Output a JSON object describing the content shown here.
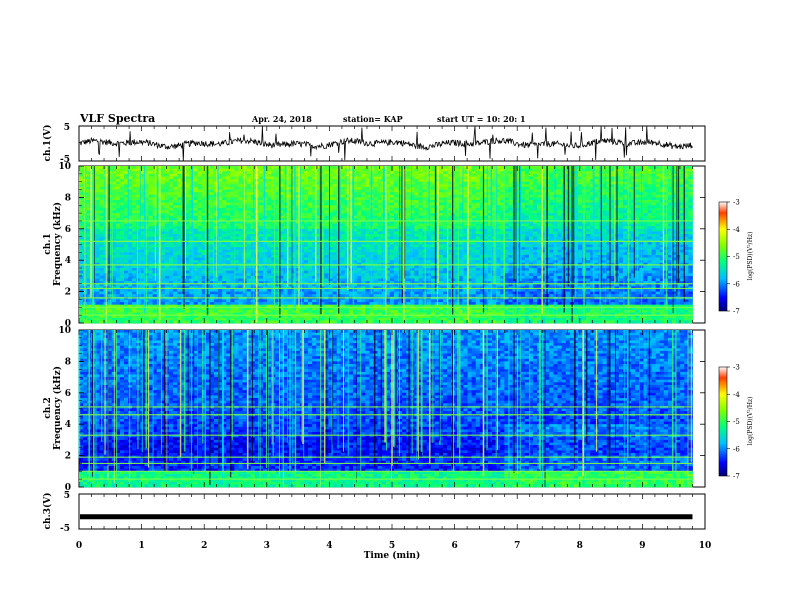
{
  "header": {
    "title": "VLF Spectra",
    "date": "Apr. 24, 2018",
    "station": "station= KAP",
    "start_ut": "start  UT =  10: 20: 1"
  },
  "chart_data": [
    {
      "type": "line",
      "panel": "ch1-waveform",
      "ylabel": "ch.1(V)",
      "ylim": [
        -5,
        5
      ],
      "yticks": [
        "5",
        "-5"
      ],
      "xlim": [
        0,
        10
      ],
      "description_values": "noisy waveform fluctuating roughly between -2 and 2 V with spikes to ±5 V"
    },
    {
      "type": "heatmap",
      "panel": "ch1-spectrogram",
      "ylabel_top": "ch.1",
      "ylabel": "Frequency  (kHz)",
      "ylim": [
        0,
        10
      ],
      "yticks": [
        "0",
        "2",
        "4",
        "6",
        "8",
        "10"
      ],
      "xlim": [
        0,
        9.8
      ],
      "colorbar": {
        "range": [
          -7,
          -3
        ],
        "ticks": [
          "-3",
          "-4",
          "-5",
          "-6",
          "-7"
        ],
        "label": "log(PSD)(V²/Hz)"
      },
      "lines_khz": [
        0.5,
        1.0,
        1.6,
        2.2,
        2.5,
        3.7,
        5.2,
        6.5
      ]
    },
    {
      "type": "heatmap",
      "panel": "ch2-spectrogram",
      "ylabel_top": "ch.2",
      "ylabel": "Frequency  (kHz)",
      "ylim": [
        0,
        10
      ],
      "yticks": [
        "0",
        "2",
        "4",
        "6",
        "8",
        "10"
      ],
      "xlim": [
        0,
        9.8
      ],
      "colorbar": {
        "range": [
          -7,
          -3
        ],
        "ticks": [
          "-3",
          "-4",
          "-5",
          "-6",
          "-7"
        ],
        "label": "log(PSD)(V²/Hz)"
      },
      "lines_khz": [
        0.5,
        1.0,
        1.5,
        1.9,
        3.3,
        4.6,
        5.1
      ]
    },
    {
      "type": "line",
      "panel": "ch3-waveform",
      "ylabel": "ch.3(V)",
      "ylim": [
        -5,
        5
      ],
      "yticks": [
        "5",
        "-5"
      ],
      "xlim": [
        0,
        10
      ],
      "flat_value": -1.5
    }
  ],
  "xaxis": {
    "label": "Time  (min)",
    "ticks": [
      "0",
      "1",
      "2",
      "3",
      "4",
      "5",
      "6",
      "7",
      "8",
      "9",
      "10"
    ]
  },
  "colors": {
    "frame": "#000000",
    "waveform": "#000000"
  }
}
